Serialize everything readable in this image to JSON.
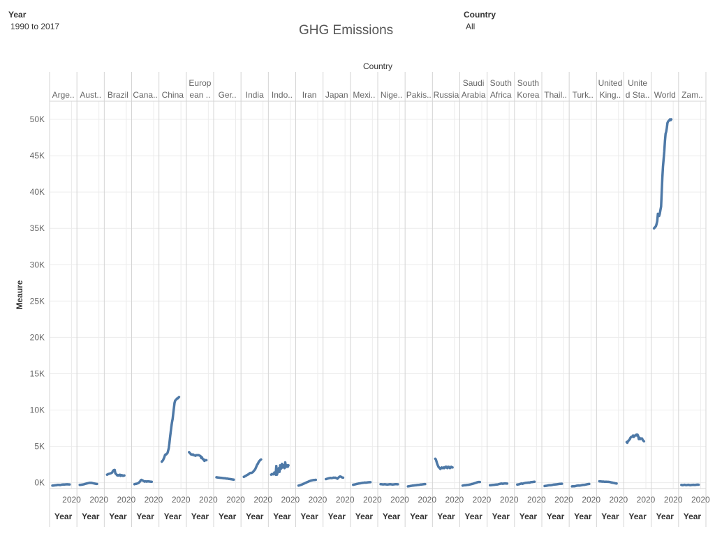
{
  "title": "GHG Emissions",
  "filters": {
    "year": {
      "label": "Year",
      "value": "1990 to 2017"
    },
    "country": {
      "label": "Country",
      "value": "All"
    }
  },
  "colors": {
    "line": "#4e79a7",
    "grid": "#ececec",
    "divider": "#d4d4d4",
    "text": "#666666"
  },
  "chart_data": {
    "type": "line",
    "title": "GHG Emissions",
    "column_header": "Country",
    "ylabel": "Meaure",
    "xlabel": "Year",
    "x_tick_label": "2020",
    "ylim": [
      -800,
      52500
    ],
    "y_ticks": [
      0,
      5000,
      10000,
      15000,
      20000,
      25000,
      30000,
      35000,
      40000,
      45000,
      50000
    ],
    "y_tick_labels": [
      "0K",
      "5K",
      "10K",
      "15K",
      "20K",
      "25K",
      "30K",
      "35K",
      "40K",
      "45K",
      "50K"
    ],
    "x": [
      1990,
      1991,
      1992,
      1993,
      1994,
      1995,
      1996,
      1997,
      1998,
      1999,
      2000,
      2001,
      2002,
      2003,
      2004,
      2005,
      2006,
      2007,
      2008,
      2009,
      2010,
      2011,
      2012,
      2013,
      2014,
      2015,
      2016,
      2017
    ],
    "grid": true,
    "series": [
      {
        "name": "Arge..",
        "values": [
          -400,
          -400,
          -380,
          -370,
          -360,
          -350,
          -340,
          -320,
          -300,
          -300,
          -290,
          -300,
          -320,
          -300,
          -280,
          -260,
          -250,
          -240,
          -230,
          -240,
          -230,
          -220,
          -220,
          -210,
          -220,
          -220,
          -230,
          -230
        ]
      },
      {
        "name": "Aust..",
        "values": [
          -300,
          -290,
          -280,
          -270,
          -260,
          -240,
          -220,
          -200,
          -170,
          -150,
          -130,
          -100,
          -80,
          -60,
          -40,
          -20,
          -10,
          -20,
          -10,
          -30,
          -50,
          -70,
          -90,
          -110,
          -130,
          -150,
          -170,
          -170
        ]
      },
      {
        "name": "Brazil",
        "values": [
          1100,
          1150,
          1200,
          1230,
          1250,
          1280,
          1300,
          1350,
          1400,
          1600,
          1700,
          1750,
          1750,
          1300,
          1200,
          1100,
          1000,
          1050,
          1000,
          1050,
          1100,
          950,
          1000,
          1050,
          1000,
          950,
          1000,
          1000
        ]
      },
      {
        "name": "Cana..",
        "values": [
          -200,
          -180,
          -160,
          -150,
          -120,
          -90,
          -50,
          0,
          100,
          200,
          350,
          400,
          350,
          300,
          250,
          200,
          150,
          200,
          200,
          150,
          180,
          200,
          180,
          170,
          160,
          150,
          140,
          140
        ]
      },
      {
        "name": "China",
        "values": [
          2900,
          3000,
          3100,
          3300,
          3500,
          3800,
          3900,
          3900,
          4000,
          4100,
          4400,
          4800,
          5500,
          6300,
          7000,
          7700,
          8300,
          8800,
          9600,
          10300,
          11000,
          11300,
          11400,
          11500,
          11600,
          11600,
          11700,
          11800
        ]
      },
      {
        "name": "Europ ean ..",
        "values": [
          4200,
          4100,
          4000,
          3900,
          3900,
          3850,
          3900,
          3800,
          3800,
          3750,
          3700,
          3800,
          3800,
          3800,
          3800,
          3800,
          3750,
          3700,
          3650,
          3400,
          3500,
          3300,
          3200,
          3200,
          3000,
          3100,
          3100,
          3100
        ]
      },
      {
        "name": "Ger..",
        "values": [
          750,
          740,
          720,
          710,
          700,
          690,
          680,
          680,
          670,
          650,
          640,
          630,
          620,
          610,
          600,
          580,
          570,
          560,
          550,
          530,
          520,
          510,
          500,
          480,
          470,
          450,
          440,
          430
        ]
      },
      {
        "name": "India",
        "values": [
          800,
          850,
          900,
          950,
          1000,
          1050,
          1100,
          1150,
          1200,
          1300,
          1350,
          1350,
          1350,
          1400,
          1450,
          1550,
          1650,
          1750,
          1900,
          2100,
          2300,
          2500,
          2600,
          2800,
          2950,
          3050,
          3150,
          3200
        ]
      },
      {
        "name": "Indo..",
        "values": [
          1100,
          1200,
          1200,
          1150,
          1200,
          1400,
          1200,
          1100,
          2300,
          1100,
          1400,
          1800,
          2000,
          1500,
          2400,
          1900,
          2000,
          2600,
          2100,
          2400,
          2200,
          2000,
          2800,
          2300,
          2200,
          2400,
          2200,
          2400
        ]
      },
      {
        "name": "Iran",
        "values": [
          -400,
          -380,
          -350,
          -320,
          -280,
          -250,
          -220,
          -180,
          -140,
          -100,
          -60,
          -20,
          20,
          60,
          100,
          140,
          180,
          220,
          250,
          280,
          300,
          320,
          340,
          360,
          370,
          380,
          390,
          400
        ]
      },
      {
        "name": "Japan",
        "values": [
          500,
          520,
          550,
          570,
          600,
          620,
          640,
          660,
          650,
          630,
          650,
          680,
          700,
          700,
          680,
          700,
          650,
          620,
          550,
          650,
          720,
          800,
          850,
          850,
          800,
          750,
          700,
          700
        ]
      },
      {
        "name": "Mexi..",
        "values": [
          -280,
          -260,
          -240,
          -220,
          -200,
          -180,
          -160,
          -140,
          -120,
          -100,
          -90,
          -80,
          -60,
          -40,
          -30,
          -10,
          0,
          10,
          30,
          20,
          10,
          30,
          40,
          50,
          60,
          60,
          70,
          70
        ]
      },
      {
        "name": "Nige..",
        "values": [
          -200,
          -200,
          -210,
          -220,
          -230,
          -220,
          -210,
          -200,
          -220,
          -230,
          -240,
          -250,
          -230,
          -220,
          -210,
          -200,
          -210,
          -220,
          -230,
          -240,
          -230,
          -220,
          -210,
          -200,
          -200,
          -200,
          -210,
          -210
        ]
      },
      {
        "name": "Pakis..",
        "values": [
          -500,
          -480,
          -470,
          -460,
          -440,
          -430,
          -420,
          -400,
          -390,
          -380,
          -370,
          -360,
          -350,
          -340,
          -320,
          -310,
          -300,
          -290,
          -280,
          -260,
          -250,
          -240,
          -230,
          -220,
          -210,
          -200,
          -190,
          -190
        ]
      },
      {
        "name": "Russia",
        "values": [
          3300,
          3200,
          2900,
          2600,
          2400,
          2200,
          2100,
          2000,
          1900,
          2000,
          2100,
          2000,
          2000,
          2100,
          2000,
          2100,
          2200,
          2100,
          2200,
          2000,
          2100,
          2200,
          2100,
          2000,
          2100,
          2200,
          2100,
          2100
        ]
      },
      {
        "name": "Saudi Arabia",
        "values": [
          -400,
          -380,
          -360,
          -350,
          -340,
          -330,
          -320,
          -300,
          -290,
          -280,
          -270,
          -250,
          -230,
          -210,
          -190,
          -170,
          -150,
          -120,
          -90,
          -60,
          -30,
          0,
          30,
          60,
          80,
          100,
          100,
          100
        ]
      },
      {
        "name": "South Africa",
        "values": [
          -350,
          -340,
          -330,
          -320,
          -310,
          -300,
          -290,
          -280,
          -270,
          -260,
          -250,
          -240,
          -230,
          -210,
          -190,
          -170,
          -150,
          -130,
          -110,
          -130,
          -150,
          -130,
          -110,
          -100,
          -100,
          -110,
          -120,
          -120
        ]
      },
      {
        "name": "South Korea",
        "values": [
          -250,
          -240,
          -220,
          -200,
          -180,
          -150,
          -120,
          -100,
          -160,
          -120,
          -80,
          -60,
          -40,
          -20,
          -10,
          0,
          10,
          20,
          30,
          10,
          40,
          70,
          80,
          90,
          100,
          110,
          130,
          140
        ]
      },
      {
        "name": "Thail..",
        "values": [
          -450,
          -440,
          -430,
          -420,
          -400,
          -380,
          -360,
          -340,
          -350,
          -340,
          -330,
          -320,
          -300,
          -280,
          -260,
          -250,
          -240,
          -230,
          -220,
          -220,
          -200,
          -190,
          -180,
          -170,
          -160,
          -150,
          -140,
          -140
        ]
      },
      {
        "name": "Turk..",
        "values": [
          -500,
          -490,
          -480,
          -470,
          -480,
          -460,
          -440,
          -420,
          -410,
          -400,
          -380,
          -400,
          -390,
          -380,
          -360,
          -340,
          -320,
          -300,
          -290,
          -300,
          -280,
          -260,
          -240,
          -220,
          -200,
          -190,
          -180,
          -170
        ]
      },
      {
        "name": "United King..",
        "values": [
          200,
          190,
          180,
          170,
          160,
          150,
          170,
          150,
          140,
          130,
          130,
          140,
          120,
          120,
          120,
          110,
          100,
          80,
          60,
          20,
          30,
          -10,
          -20,
          -30,
          -60,
          -80,
          -100,
          -110
        ]
      },
      {
        "name": "Unite d Sta..",
        "values": [
          5600,
          5500,
          5700,
          5800,
          5900,
          6000,
          6200,
          6300,
          6300,
          6400,
          6500,
          6300,
          6400,
          6500,
          6500,
          6600,
          6500,
          6600,
          6400,
          6000,
          6200,
          6000,
          6100,
          6100,
          6100,
          5900,
          5800,
          5700
        ]
      },
      {
        "name": "World",
        "values": [
          35000,
          35100,
          35200,
          35300,
          35600,
          36000,
          37000,
          36800,
          36700,
          37000,
          37500,
          38000,
          40000,
          42000,
          43500,
          44500,
          45500,
          47000,
          48000,
          48300,
          48800,
          49500,
          49700,
          49800,
          49900,
          50000,
          49900,
          50000
        ]
      },
      {
        "name": "Zam..",
        "values": [
          -300,
          -320,
          -340,
          -320,
          -300,
          -280,
          -300,
          -320,
          -330,
          -310,
          -290,
          -280,
          -300,
          -320,
          -340,
          -320,
          -310,
          -300,
          -290,
          -280,
          -300,
          -310,
          -290,
          -280,
          -270,
          -260,
          -270,
          -270
        ]
      }
    ]
  }
}
